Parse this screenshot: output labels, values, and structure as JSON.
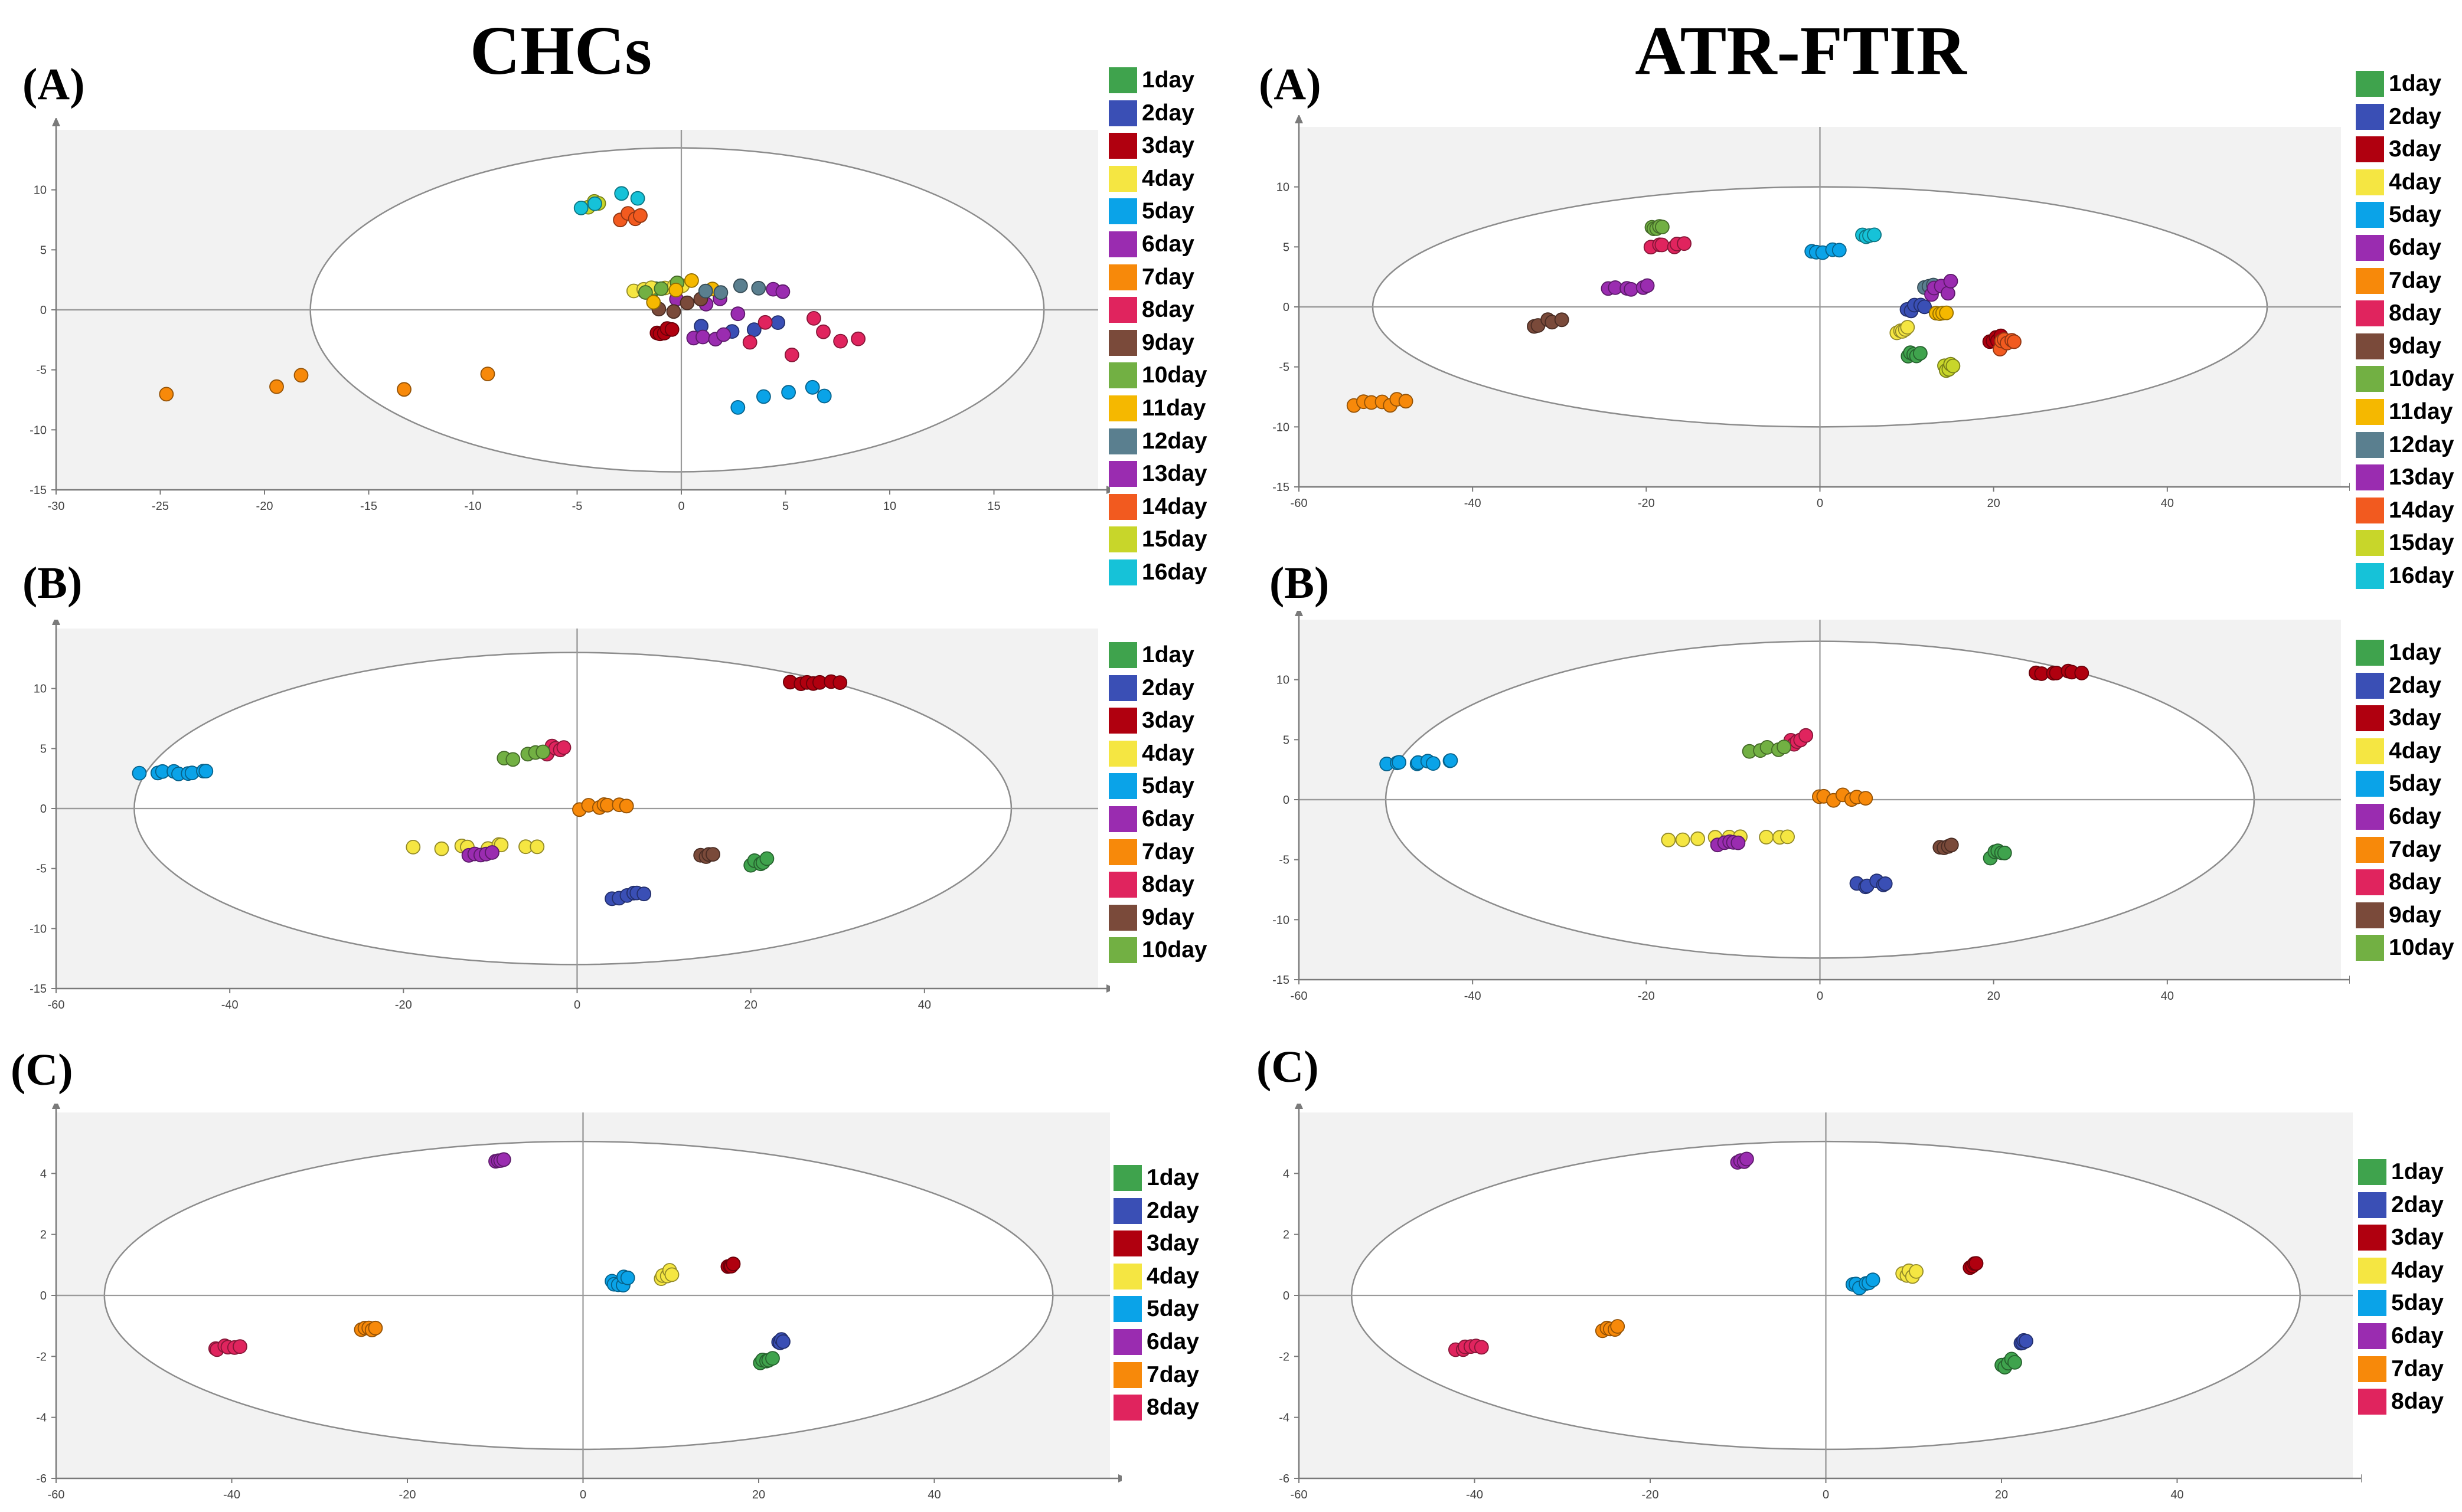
{
  "titles": {
    "left": "CHCs",
    "right": "ATR-FTIR"
  },
  "colors": {
    "1day": "#3fa34d",
    "2day": "#3a4fb5",
    "3day": "#b0000f",
    "4day": "#f5e642",
    "5day": "#0aa3e8",
    "6day": "#9a2cb0",
    "7day": "#f7890a",
    "8day": "#e0245e",
    "9day": "#7a4a3a",
    "10day": "#72b043",
    "11day": "#f5b800",
    "12day": "#5a7f8f",
    "13day": "#9a2cb0",
    "14day": "#f25a1f",
    "15day": "#c8d62a",
    "16day": "#16c2d8"
  },
  "chart_data": [
    {
      "id": "chcs-a",
      "type": "scatter",
      "label": "(A)",
      "xlim": [
        -30,
        20
      ],
      "ylim": [
        -15,
        15
      ],
      "xticks": [
        -30,
        -25,
        -20,
        -15,
        -10,
        -5,
        0,
        5,
        10,
        15
      ],
      "yticks": [
        -15,
        -10,
        -5,
        0,
        5,
        10
      ],
      "ellipse": {
        "cx": -0.2,
        "cy": 0,
        "rx": 17.6,
        "ry": 13.5
      },
      "legend": [
        "1day",
        "2day",
        "3day",
        "4day",
        "5day",
        "6day",
        "7day",
        "8day",
        "9day",
        "10day",
        "11day",
        "12day",
        "13day",
        "14day",
        "15day",
        "16day"
      ],
      "clusters": [
        {
          "day": "1day",
          "x": -1.5,
          "y": 1.5,
          "sx": 0.3,
          "sy": 0.3,
          "n": 2
        },
        {
          "day": "2day",
          "x": 2.8,
          "y": -1.3,
          "sx": 2.0,
          "sy": 0.8,
          "n": 4
        },
        {
          "day": "3day",
          "x": -0.8,
          "y": -1.8,
          "sx": 0.4,
          "sy": 0.4,
          "n": 5
        },
        {
          "day": "4day",
          "x": -1.0,
          "y": 2.0,
          "sx": 1.4,
          "sy": 0.8,
          "n": 6
        },
        {
          "day": "5day",
          "x": 5.0,
          "y": -7.0,
          "sx": 2.5,
          "sy": 1.5,
          "n": 5
        },
        {
          "day": "6day",
          "x": 2.5,
          "y": 0.5,
          "sx": 3.0,
          "sy": 1.8,
          "n": 6
        },
        {
          "day": "7day",
          "x": -17.0,
          "y": -7.0,
          "sx": 8.5,
          "sy": 3.0,
          "n": 5
        },
        {
          "day": "8day",
          "x": 6.0,
          "y": -2.0,
          "sx": 3.0,
          "sy": 3.0,
          "n": 7
        },
        {
          "day": "9day",
          "x": 0.0,
          "y": 0.8,
          "sx": 1.2,
          "sy": 1.6,
          "n": 4
        },
        {
          "day": "10day",
          "x": -1.0,
          "y": 2.0,
          "sx": 0.8,
          "sy": 0.8,
          "n": 3
        },
        {
          "day": "11day",
          "x": 0.0,
          "y": 2.0,
          "sx": 1.5,
          "sy": 1.5,
          "n": 4
        },
        {
          "day": "12day",
          "x": 2.5,
          "y": 1.5,
          "sx": 1.5,
          "sy": 1.0,
          "n": 4
        },
        {
          "day": "13day",
          "x": 1.3,
          "y": -2.3,
          "sx": 0.8,
          "sy": 0.3,
          "n": 4
        },
        {
          "day": "14day",
          "x": -2.4,
          "y": 7.8,
          "sx": 0.6,
          "sy": 0.8,
          "n": 4
        },
        {
          "day": "15day",
          "x": -4.2,
          "y": 8.8,
          "sx": 0.3,
          "sy": 0.4,
          "n": 3
        },
        {
          "day": "16day",
          "x": -3.5,
          "y": 9.5,
          "sx": 1.5,
          "sy": 1.2,
          "n": 4
        }
      ]
    },
    {
      "id": "atr-a",
      "type": "scatter",
      "label": "(A)",
      "xlim": [
        -60,
        60
      ],
      "ylim": [
        -15,
        15
      ],
      "xticks": [
        -60,
        -40,
        -20,
        0,
        20,
        40
      ],
      "yticks": [
        -15,
        -10,
        -5,
        0,
        5,
        10
      ],
      "ellipse": {
        "cx": 0,
        "cy": 0,
        "rx": 51.5,
        "ry": 10.0
      },
      "legend": [
        "1day",
        "2day",
        "3day",
        "4day",
        "5day",
        "6day",
        "7day",
        "8day",
        "9day",
        "10day",
        "11day",
        "12day",
        "13day",
        "14day",
        "15day",
        "16day"
      ],
      "clusters": [
        {
          "day": "1day",
          "x": 10.8,
          "y": -4.0,
          "sx": 0.8,
          "sy": 0.5,
          "n": 5
        },
        {
          "day": "2day",
          "x": 11.0,
          "y": 0.0,
          "sx": 1.2,
          "sy": 0.5,
          "n": 5
        },
        {
          "day": "3day",
          "x": 20.2,
          "y": -2.7,
          "sx": 0.8,
          "sy": 0.3,
          "n": 5
        },
        {
          "day": "4day",
          "x": 9.5,
          "y": -1.9,
          "sx": 0.8,
          "sy": 0.3,
          "n": 5
        },
        {
          "day": "5day",
          "x": 0.5,
          "y": 4.6,
          "sx": 1.8,
          "sy": 0.3,
          "n": 5
        },
        {
          "day": "6day",
          "x": -22.0,
          "y": 1.6,
          "sx": 3.0,
          "sy": 0.5,
          "n": 6
        },
        {
          "day": "7day",
          "x": -50.5,
          "y": -8.0,
          "sx": 4.0,
          "sy": 0.6,
          "n": 7
        },
        {
          "day": "8day",
          "x": -17.5,
          "y": 5.1,
          "sx": 2.5,
          "sy": 0.2,
          "n": 6
        },
        {
          "day": "9day",
          "x": -31.5,
          "y": -1.3,
          "sx": 1.8,
          "sy": 0.4,
          "n": 5
        },
        {
          "day": "10day",
          "x": -18.8,
          "y": 6.6,
          "sx": 0.7,
          "sy": 0.2,
          "n": 5
        },
        {
          "day": "11day",
          "x": 14.0,
          "y": -0.5,
          "sx": 0.8,
          "sy": 0.3,
          "n": 4
        },
        {
          "day": "12day",
          "x": 12.5,
          "y": 1.7,
          "sx": 0.6,
          "sy": 0.3,
          "n": 3
        },
        {
          "day": "13day",
          "x": 14.0,
          "y": 1.5,
          "sx": 1.5,
          "sy": 0.9,
          "n": 5
        },
        {
          "day": "14day",
          "x": 21.5,
          "y": -3.0,
          "sx": 1.0,
          "sy": 0.7,
          "n": 6
        },
        {
          "day": "15day",
          "x": 14.8,
          "y": -5.0,
          "sx": 0.6,
          "sy": 0.4,
          "n": 5
        },
        {
          "day": "16day",
          "x": 5.5,
          "y": 6.0,
          "sx": 0.8,
          "sy": 0.3,
          "n": 4
        }
      ]
    },
    {
      "id": "chcs-b",
      "type": "scatter",
      "label": "(B)",
      "xlim": [
        -60,
        60
      ],
      "ylim": [
        -15,
        15
      ],
      "xticks": [
        -60,
        -40,
        -20,
        0,
        20,
        40
      ],
      "yticks": [
        -15,
        -10,
        -5,
        0,
        5,
        10
      ],
      "ellipse": {
        "cx": -0.5,
        "cy": 0,
        "rx": 50.5,
        "ry": 13.0
      },
      "legend": [
        "1day",
        "2day",
        "3day",
        "4day",
        "5day",
        "6day",
        "7day",
        "8day",
        "9day",
        "10day"
      ],
      "clusters": [
        {
          "day": "1day",
          "x": 21.0,
          "y": -4.5,
          "sx": 1.0,
          "sy": 0.4,
          "n": 5
        },
        {
          "day": "2day",
          "x": 6.0,
          "y": -7.2,
          "sx": 2.0,
          "sy": 0.4,
          "n": 6
        },
        {
          "day": "3day",
          "x": 27.5,
          "y": 10.5,
          "sx": 3.0,
          "sy": 0.2,
          "n": 7
        },
        {
          "day": "4day",
          "x": -11.0,
          "y": -3.2,
          "sx": 8.0,
          "sy": 0.4,
          "n": 9
        },
        {
          "day": "5day",
          "x": -46.0,
          "y": 3.0,
          "sx": 4.5,
          "sy": 0.2,
          "n": 9
        },
        {
          "day": "6day",
          "x": -11.0,
          "y": -3.8,
          "sx": 1.5,
          "sy": 0.2,
          "n": 5
        },
        {
          "day": "7day",
          "x": 3.0,
          "y": 0.2,
          "sx": 2.8,
          "sy": 0.4,
          "n": 7
        },
        {
          "day": "8day",
          "x": -2.5,
          "y": 5.0,
          "sx": 1.0,
          "sy": 0.5,
          "n": 5
        },
        {
          "day": "9day",
          "x": 15.0,
          "y": -3.9,
          "sx": 0.8,
          "sy": 0.2,
          "n": 4
        },
        {
          "day": "10day",
          "x": -6.0,
          "y": 4.3,
          "sx": 2.5,
          "sy": 0.5,
          "n": 5
        }
      ]
    },
    {
      "id": "atr-b",
      "type": "scatter",
      "label": "(B)",
      "xlim": [
        -60,
        60
      ],
      "ylim": [
        -15,
        15
      ],
      "xticks": [
        -60,
        -40,
        -20,
        0,
        20,
        40
      ],
      "yticks": [
        -15,
        -10,
        -5,
        0,
        5,
        10
      ],
      "ellipse": {
        "cx": 0,
        "cy": 0,
        "rx": 50.0,
        "ry": 13.2
      },
      "legend": [
        "1day",
        "2day",
        "3day",
        "4day",
        "5day",
        "6day",
        "7day",
        "8day",
        "9day",
        "10day"
      ],
      "clusters": [
        {
          "day": "1day",
          "x": 20.5,
          "y": -4.5,
          "sx": 1.0,
          "sy": 0.4,
          "n": 5
        },
        {
          "day": "2day",
          "x": 6.0,
          "y": -7.0,
          "sx": 2.0,
          "sy": 0.4,
          "n": 6
        },
        {
          "day": "3day",
          "x": 27.5,
          "y": 10.6,
          "sx": 3.0,
          "sy": 0.2,
          "n": 7
        },
        {
          "day": "4day",
          "x": -10.5,
          "y": -3.2,
          "sx": 8.0,
          "sy": 0.4,
          "n": 9
        },
        {
          "day": "5day",
          "x": -46.0,
          "y": 3.1,
          "sx": 4.5,
          "sy": 0.2,
          "n": 9
        },
        {
          "day": "6day",
          "x": -10.5,
          "y": -3.6,
          "sx": 1.5,
          "sy": 0.2,
          "n": 5
        },
        {
          "day": "7day",
          "x": 2.5,
          "y": 0.2,
          "sx": 3.0,
          "sy": 0.4,
          "n": 7
        },
        {
          "day": "8day",
          "x": -2.5,
          "y": 5.0,
          "sx": 1.0,
          "sy": 0.5,
          "n": 5
        },
        {
          "day": "9day",
          "x": 14.5,
          "y": -3.9,
          "sx": 0.8,
          "sy": 0.2,
          "n": 4
        },
        {
          "day": "10day",
          "x": -6.0,
          "y": 4.3,
          "sx": 2.5,
          "sy": 0.5,
          "n": 5
        }
      ]
    },
    {
      "id": "chcs-c",
      "type": "scatter",
      "label": "(C)",
      "xlim": [
        -60,
        60
      ],
      "ylim": [
        -6,
        6
      ],
      "xticks": [
        -60,
        -40,
        -20,
        0,
        20,
        40
      ],
      "yticks": [
        -6,
        -4,
        -2,
        0,
        2,
        4
      ],
      "ellipse": {
        "cx": -0.5,
        "cy": 0,
        "rx": 54.0,
        "ry": 5.05
      },
      "legend": [
        "1day",
        "2day",
        "3day",
        "4day",
        "5day",
        "6day",
        "7day",
        "8day"
      ],
      "clusters": [
        {
          "day": "1day",
          "x": 20.8,
          "y": -2.2,
          "sx": 0.8,
          "sy": 0.2,
          "n": 5
        },
        {
          "day": "2day",
          "x": 22.5,
          "y": -1.5,
          "sx": 0.3,
          "sy": 0.1,
          "n": 4
        },
        {
          "day": "3day",
          "x": 16.8,
          "y": 1.0,
          "sx": 0.4,
          "sy": 0.1,
          "n": 4
        },
        {
          "day": "4day",
          "x": 9.5,
          "y": 0.7,
          "sx": 0.8,
          "sy": 0.2,
          "n": 5
        },
        {
          "day": "5day",
          "x": 4.2,
          "y": 0.4,
          "sx": 1.2,
          "sy": 0.3,
          "n": 6
        },
        {
          "day": "6day",
          "x": -9.5,
          "y": 4.4,
          "sx": 0.6,
          "sy": 0.1,
          "n": 4
        },
        {
          "day": "7day",
          "x": -24.5,
          "y": -1.1,
          "sx": 1.0,
          "sy": 0.1,
          "n": 5
        },
        {
          "day": "8day",
          "x": -40.5,
          "y": -1.7,
          "sx": 1.8,
          "sy": 0.1,
          "n": 6
        }
      ]
    },
    {
      "id": "atr-c",
      "type": "scatter",
      "label": "(C)",
      "xlim": [
        -60,
        60
      ],
      "ylim": [
        -6,
        6
      ],
      "xticks": [
        -60,
        -40,
        -20,
        0,
        20,
        40
      ],
      "yticks": [
        -6,
        -4,
        -2,
        0,
        2,
        4
      ],
      "ellipse": {
        "cx": 0,
        "cy": 0,
        "rx": 54.0,
        "ry": 5.05
      },
      "legend": [
        "1day",
        "2day",
        "3day",
        "4day",
        "5day",
        "6day",
        "7day",
        "8day"
      ],
      "clusters": [
        {
          "day": "1day",
          "x": 20.8,
          "y": -2.2,
          "sx": 0.8,
          "sy": 0.2,
          "n": 5
        },
        {
          "day": "2day",
          "x": 22.5,
          "y": -1.5,
          "sx": 0.3,
          "sy": 0.1,
          "n": 4
        },
        {
          "day": "3day",
          "x": 16.8,
          "y": 1.0,
          "sx": 0.4,
          "sy": 0.1,
          "n": 4
        },
        {
          "day": "4day",
          "x": 9.5,
          "y": 0.7,
          "sx": 0.8,
          "sy": 0.2,
          "n": 5
        },
        {
          "day": "5day",
          "x": 4.2,
          "y": 0.4,
          "sx": 1.2,
          "sy": 0.3,
          "n": 6
        },
        {
          "day": "6day",
          "x": -9.5,
          "y": 4.4,
          "sx": 0.6,
          "sy": 0.1,
          "n": 4
        },
        {
          "day": "7day",
          "x": -24.5,
          "y": -1.1,
          "sx": 1.0,
          "sy": 0.1,
          "n": 5
        },
        {
          "day": "8day",
          "x": -40.5,
          "y": -1.7,
          "sx": 1.8,
          "sy": 0.1,
          "n": 6
        }
      ]
    }
  ]
}
